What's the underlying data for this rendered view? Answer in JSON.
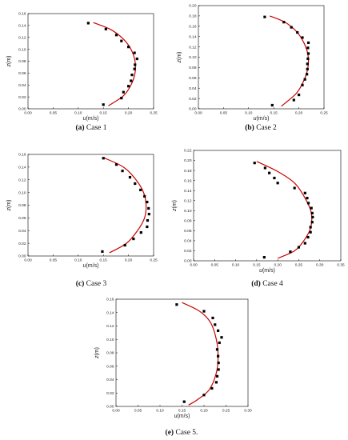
{
  "figure": {
    "accent_color": "#cc0000",
    "marker_color": "#000000"
  },
  "chart_data": [
    {
      "type": "scatter",
      "caption_label": "(a)",
      "caption_text": " Case 1",
      "xlabel_var": "u",
      "xlabel_unit": "(m/s)",
      "ylabel_var": "z",
      "ylabel_unit": "(m)",
      "xlim": [
        0,
        0.25
      ],
      "ylim": [
        0,
        0.16
      ],
      "xticks": [
        "0.00",
        "0.05",
        "0.10",
        "0.15",
        "0.20",
        "0.25"
      ],
      "yticks": [
        "0.00",
        "0.02",
        "0.04",
        "0.06",
        "0.08",
        "0.10",
        "0.12",
        "0.14",
        "0.16"
      ],
      "points": [
        [
          0.12,
          0.144
        ],
        [
          0.155,
          0.134
        ],
        [
          0.176,
          0.124
        ],
        [
          0.186,
          0.114
        ],
        [
          0.2,
          0.104
        ],
        [
          0.212,
          0.094
        ],
        [
          0.217,
          0.084
        ],
        [
          0.213,
          0.074
        ],
        [
          0.212,
          0.067
        ],
        [
          0.207,
          0.057
        ],
        [
          0.205,
          0.047
        ],
        [
          0.2,
          0.038
        ],
        [
          0.19,
          0.028
        ],
        [
          0.186,
          0.018
        ],
        [
          0.15,
          0.007
        ]
      ],
      "fit": [
        [
          0.13,
          0.145
        ],
        [
          0.165,
          0.133
        ],
        [
          0.19,
          0.117
        ],
        [
          0.205,
          0.1
        ],
        [
          0.213,
          0.08
        ],
        [
          0.213,
          0.06
        ],
        [
          0.205,
          0.04
        ],
        [
          0.19,
          0.022
        ],
        [
          0.16,
          0.005
        ]
      ]
    },
    {
      "type": "scatter",
      "caption_label": "(b)",
      "caption_text": " Case 2",
      "xlabel_var": "u",
      "xlabel_unit": "(m/s)",
      "ylabel_var": "z",
      "ylabel_unit": "(m)",
      "xlim": [
        0,
        0.25
      ],
      "ylim": [
        0,
        0.2
      ],
      "xticks": [
        "0.00",
        "0.05",
        "0.10",
        "0.15",
        "0.20",
        "0.25"
      ],
      "yticks": [
        "0.00",
        "0.02",
        "0.04",
        "0.06",
        "0.08",
        "0.10",
        "0.12",
        "0.14",
        "0.16",
        "0.18",
        "0.20"
      ],
      "points": [
        [
          0.132,
          0.178
        ],
        [
          0.17,
          0.168
        ],
        [
          0.185,
          0.158
        ],
        [
          0.197,
          0.148
        ],
        [
          0.207,
          0.138
        ],
        [
          0.219,
          0.128
        ],
        [
          0.218,
          0.118
        ],
        [
          0.219,
          0.107
        ],
        [
          0.218,
          0.097
        ],
        [
          0.217,
          0.087
        ],
        [
          0.217,
          0.077
        ],
        [
          0.216,
          0.067
        ],
        [
          0.212,
          0.057
        ],
        [
          0.207,
          0.046
        ],
        [
          0.2,
          0.027
        ],
        [
          0.19,
          0.017
        ],
        [
          0.147,
          0.007
        ]
      ],
      "fit": [
        [
          0.142,
          0.18
        ],
        [
          0.172,
          0.168
        ],
        [
          0.195,
          0.15
        ],
        [
          0.21,
          0.128
        ],
        [
          0.218,
          0.105
        ],
        [
          0.218,
          0.08
        ],
        [
          0.21,
          0.055
        ],
        [
          0.195,
          0.03
        ],
        [
          0.165,
          0.005
        ]
      ]
    },
    {
      "type": "scatter",
      "caption_label": "(c)",
      "caption_text": " Case 3",
      "xlabel_var": "u",
      "xlabel_unit": "(m/s)",
      "ylabel_var": "z",
      "ylabel_unit": "(m)",
      "xlim": [
        0,
        0.25
      ],
      "ylim": [
        0,
        0.16
      ],
      "xticks": [
        "0.00",
        "0.05",
        "0.10",
        "0.15",
        "0.20",
        "0.25"
      ],
      "yticks": [
        "0.00",
        "0.02",
        "0.04",
        "0.06",
        "0.08",
        "0.10",
        "0.12",
        "0.14",
        "0.16"
      ],
      "points": [
        [
          0.15,
          0.154
        ],
        [
          0.176,
          0.144
        ],
        [
          0.188,
          0.134
        ],
        [
          0.203,
          0.124
        ],
        [
          0.213,
          0.114
        ],
        [
          0.224,
          0.104
        ],
        [
          0.232,
          0.094
        ],
        [
          0.237,
          0.085
        ],
        [
          0.24,
          0.075
        ],
        [
          0.241,
          0.066
        ],
        [
          0.238,
          0.056
        ],
        [
          0.237,
          0.046
        ],
        [
          0.225,
          0.037
        ],
        [
          0.21,
          0.027
        ],
        [
          0.193,
          0.017
        ],
        [
          0.148,
          0.007
        ]
      ],
      "fit": [
        [
          0.15,
          0.155
        ],
        [
          0.19,
          0.14
        ],
        [
          0.215,
          0.12
        ],
        [
          0.23,
          0.1
        ],
        [
          0.235,
          0.08
        ],
        [
          0.232,
          0.06
        ],
        [
          0.218,
          0.04
        ],
        [
          0.196,
          0.02
        ],
        [
          0.162,
          0.005
        ]
      ]
    },
    {
      "type": "scatter",
      "caption_label": "(d)",
      "caption_text": " Case 4",
      "xlabel_var": "u",
      "xlabel_unit": "(m/s)",
      "ylabel_var": "z",
      "ylabel_unit": "(m)",
      "xlim": [
        0,
        0.35
      ],
      "ylim": [
        0,
        0.22
      ],
      "xticks": [
        "0.00",
        "0.05",
        "0.10",
        "0.15",
        "0.20",
        "0.25",
        "0.30",
        "0.35"
      ],
      "yticks": [
        "0.00",
        "0.02",
        "0.04",
        "0.06",
        "0.08",
        "0.10",
        "0.12",
        "0.14",
        "0.16",
        "0.18",
        "0.20",
        "0.22"
      ],
      "points": [
        [
          0.145,
          0.195
        ],
        [
          0.17,
          0.185
        ],
        [
          0.18,
          0.175
        ],
        [
          0.192,
          0.165
        ],
        [
          0.2,
          0.155
        ],
        [
          0.24,
          0.145
        ],
        [
          0.265,
          0.135
        ],
        [
          0.27,
          0.125
        ],
        [
          0.273,
          0.115
        ],
        [
          0.28,
          0.105
        ],
        [
          0.282,
          0.095
        ],
        [
          0.283,
          0.087
        ],
        [
          0.282,
          0.077
        ],
        [
          0.278,
          0.067
        ],
        [
          0.278,
          0.057
        ],
        [
          0.272,
          0.047
        ],
        [
          0.265,
          0.035
        ],
        [
          0.25,
          0.027
        ],
        [
          0.23,
          0.018
        ],
        [
          0.168,
          0.007
        ]
      ],
      "fit": [
        [
          0.15,
          0.198
        ],
        [
          0.2,
          0.178
        ],
        [
          0.24,
          0.155
        ],
        [
          0.265,
          0.125
        ],
        [
          0.28,
          0.095
        ],
        [
          0.278,
          0.065
        ],
        [
          0.262,
          0.04
        ],
        [
          0.24,
          0.02
        ],
        [
          0.2,
          0.005
        ]
      ]
    },
    {
      "type": "scatter",
      "caption_label": "(e)",
      "caption_text": " Case 5.",
      "xlabel_var": "u",
      "xlabel_unit": "(m/s)",
      "ylabel_var": "z",
      "ylabel_unit": "(m)",
      "xlim": [
        0,
        0.3
      ],
      "ylim": [
        0,
        0.16
      ],
      "xticks": [
        "0.00",
        "0.05",
        "0.10",
        "0.15",
        "0.20",
        "0.25",
        "0.30"
      ],
      "yticks": [
        "0.00",
        "0.02",
        "0.04",
        "0.06",
        "0.08",
        "0.10",
        "0.12",
        "0.14",
        "0.16"
      ],
      "points": [
        [
          0.138,
          0.152
        ],
        [
          0.2,
          0.142
        ],
        [
          0.22,
          0.132
        ],
        [
          0.225,
          0.122
        ],
        [
          0.232,
          0.113
        ],
        [
          0.24,
          0.103
        ],
        [
          0.235,
          0.095
        ],
        [
          0.23,
          0.085
        ],
        [
          0.232,
          0.075
        ],
        [
          0.233,
          0.065
        ],
        [
          0.233,
          0.055
        ],
        [
          0.23,
          0.045
        ],
        [
          0.228,
          0.036
        ],
        [
          0.218,
          0.027
        ],
        [
          0.2,
          0.017
        ],
        [
          0.155,
          0.007
        ]
      ],
      "fit": [
        [
          0.15,
          0.155
        ],
        [
          0.19,
          0.142
        ],
        [
          0.215,
          0.125
        ],
        [
          0.228,
          0.1
        ],
        [
          0.232,
          0.075
        ],
        [
          0.228,
          0.05
        ],
        [
          0.212,
          0.025
        ],
        [
          0.185,
          0.01
        ],
        [
          0.165,
          0.002
        ]
      ]
    }
  ]
}
